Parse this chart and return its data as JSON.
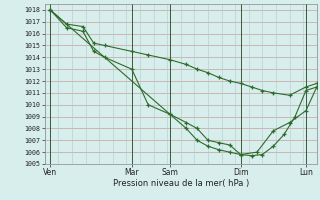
{
  "xlabel": "Pression niveau de la mer( hPa )",
  "background_color": "#d8eeec",
  "grid_color_h": "#d8b8b8",
  "grid_color_v": "#c8d8d4",
  "line_color": "#2d6b2d",
  "vline_color": "#3a5a3a",
  "ylim": [
    1005,
    1018.5
  ],
  "xlim": [
    0,
    100
  ],
  "yticks": [
    1005,
    1006,
    1007,
    1008,
    1009,
    1010,
    1011,
    1012,
    1013,
    1014,
    1015,
    1016,
    1017,
    1018
  ],
  "xtick_labels": [
    "Ven",
    "Mar",
    "Sam",
    "Dim",
    "Lun"
  ],
  "xtick_positions": [
    2,
    32,
    46,
    72,
    96
  ],
  "curve1_x": [
    2,
    8,
    14,
    18,
    22,
    32,
    38,
    46,
    52,
    56,
    60,
    64,
    68,
    72,
    78,
    84,
    90,
    96,
    100
  ],
  "curve1_y": [
    1018.0,
    1016.5,
    1016.2,
    1014.5,
    1014.0,
    1013.0,
    1010.0,
    1009.2,
    1008.0,
    1007.0,
    1006.5,
    1006.2,
    1006.0,
    1005.8,
    1006.0,
    1007.8,
    1008.5,
    1009.5,
    1011.5
  ],
  "curve2_x": [
    2,
    8,
    14,
    18,
    22,
    32,
    38,
    46,
    52,
    56,
    60,
    64,
    68,
    72,
    76,
    80,
    84,
    90,
    96,
    100
  ],
  "curve2_y": [
    1018.0,
    1016.8,
    1016.6,
    1015.2,
    1015.0,
    1014.5,
    1014.2,
    1013.8,
    1013.4,
    1013.0,
    1012.7,
    1012.3,
    1012.0,
    1011.8,
    1011.5,
    1011.2,
    1011.0,
    1010.8,
    1011.5,
    1011.8
  ],
  "curve3_x": [
    2,
    46,
    52,
    56,
    60,
    64,
    68,
    72,
    76,
    80,
    84,
    88,
    92,
    96,
    100
  ],
  "curve3_y": [
    1018.0,
    1009.2,
    1008.5,
    1008.0,
    1007.0,
    1006.8,
    1006.6,
    1005.8,
    1005.7,
    1005.8,
    1006.5,
    1007.5,
    1009.0,
    1011.2,
    1011.5
  ]
}
